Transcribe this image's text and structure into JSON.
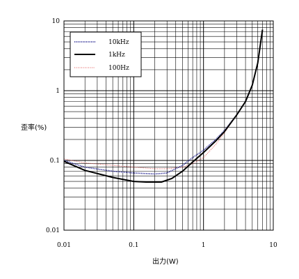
{
  "chart_data": {
    "type": "line",
    "xlabel": "出力(W)",
    "ylabel": "歪率(%)",
    "x_scale": "log",
    "y_scale": "log",
    "xlim": [
      0.01,
      10
    ],
    "ylim": [
      0.01,
      10
    ],
    "x_ticks": [
      "0.01",
      "0.1",
      "1",
      "10"
    ],
    "y_ticks": [
      "10",
      "1",
      "0.1",
      "0.01"
    ],
    "grid": true,
    "legend_position": "top-left",
    "series": [
      {
        "name": "10kHz",
        "color": "#1a1a8c",
        "style": "dotted",
        "points": [
          [
            0.01,
            0.1
          ],
          [
            0.02,
            0.08
          ],
          [
            0.05,
            0.07
          ],
          [
            0.1,
            0.066
          ],
          [
            0.2,
            0.064
          ],
          [
            0.3,
            0.066
          ],
          [
            0.5,
            0.085
          ],
          [
            0.7,
            0.11
          ],
          [
            1,
            0.14
          ],
          [
            1.5,
            0.2
          ],
          [
            2,
            0.27
          ],
          [
            3,
            0.45
          ],
          [
            4,
            0.7
          ],
          [
            5,
            1.2
          ],
          [
            6,
            2.5
          ],
          [
            7,
            7.5
          ]
        ]
      },
      {
        "name": "1kHz",
        "color": "#000000",
        "style": "solid",
        "points": [
          [
            0.01,
            0.097
          ],
          [
            0.02,
            0.072
          ],
          [
            0.05,
            0.057
          ],
          [
            0.1,
            0.05
          ],
          [
            0.15,
            0.049
          ],
          [
            0.25,
            0.049
          ],
          [
            0.35,
            0.055
          ],
          [
            0.5,
            0.07
          ],
          [
            0.7,
            0.095
          ],
          [
            1,
            0.13
          ],
          [
            1.5,
            0.19
          ],
          [
            2,
            0.26
          ],
          [
            3,
            0.45
          ],
          [
            4,
            0.7
          ],
          [
            5,
            1.2
          ],
          [
            6,
            2.5
          ],
          [
            7,
            7.5
          ]
        ]
      },
      {
        "name": "100Hz",
        "color": "#e05050",
        "style": "dotted",
        "points": [
          [
            0.01,
            0.105
          ],
          [
            0.02,
            0.092
          ],
          [
            0.05,
            0.085
          ],
          [
            0.1,
            0.08
          ],
          [
            0.2,
            0.076
          ],
          [
            0.3,
            0.076
          ],
          [
            0.5,
            0.08
          ],
          [
            0.7,
            0.09
          ],
          [
            1,
            0.11
          ],
          [
            1.5,
            0.17
          ],
          [
            2,
            0.25
          ],
          [
            3,
            0.45
          ],
          [
            4,
            0.7
          ],
          [
            5,
            1.2
          ],
          [
            6,
            2.5
          ],
          [
            7,
            7.5
          ]
        ]
      }
    ]
  }
}
